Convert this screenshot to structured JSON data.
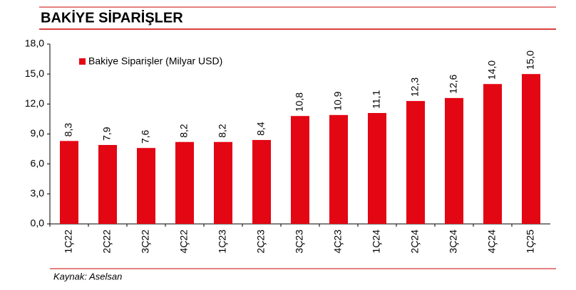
{
  "chart_data": {
    "type": "bar",
    "title": "BAKİYE SİPARİŞLER",
    "source": "Kaynak: Aselsan",
    "categories": [
      "1Ç22",
      "2Ç22",
      "3Ç22",
      "4Ç22",
      "1Ç23",
      "2Ç23",
      "3Ç23",
      "4Ç23",
      "1Ç24",
      "2Ç24",
      "3Ç24",
      "4Ç24",
      "1Ç25"
    ],
    "series": [
      {
        "name": "Bakiye Siparişler (Milyar USD)",
        "color": "#e30613",
        "values": [
          8.3,
          7.9,
          7.6,
          8.2,
          8.2,
          8.4,
          10.8,
          10.9,
          11.1,
          12.3,
          12.6,
          14.0,
          15.0
        ],
        "value_labels": [
          "8,3",
          "7,9",
          "7,6",
          "8,2",
          "8,2",
          "8,4",
          "10,8",
          "10,9",
          "11,1",
          "12,3",
          "12,6",
          "14,0",
          "15,0"
        ]
      }
    ],
    "ylim": [
      0,
      18
    ],
    "yticks": [
      {
        "value": 0,
        "label": "0,0"
      },
      {
        "value": 3,
        "label": "3,0"
      },
      {
        "value": 6,
        "label": "6,0"
      },
      {
        "value": 9,
        "label": "9,0"
      },
      {
        "value": 12,
        "label": "12,0"
      },
      {
        "value": 15,
        "label": "15,0"
      },
      {
        "value": 18,
        "label": "18,0"
      }
    ]
  }
}
